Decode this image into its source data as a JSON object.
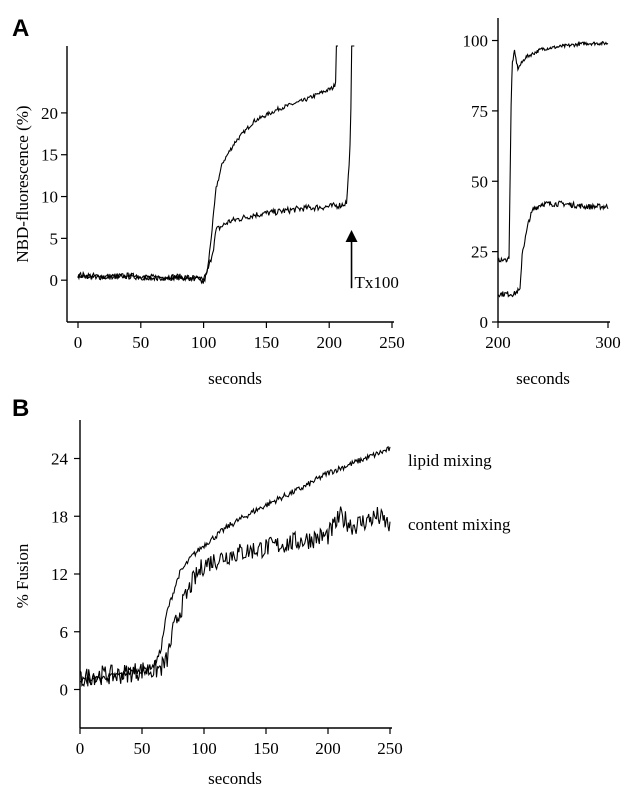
{
  "panels": {
    "a": "A",
    "b": "B"
  },
  "chart_data": [
    {
      "type": "line",
      "id": "A-main",
      "ylabel": "NBD-fluorescence (%)",
      "xlabel": "seconds",
      "xlim": [
        0,
        250
      ],
      "ylim": [
        -5,
        28
      ],
      "xticks": [
        0,
        50,
        100,
        150,
        200,
        250
      ],
      "yticks": [
        0,
        5,
        10,
        15,
        20
      ],
      "annotation": {
        "text": "Tx100",
        "x": 213,
        "y_from": 0,
        "y_to": 6
      },
      "series": [
        {
          "x": [
            0,
            20,
            40,
            60,
            80,
            95,
            100,
            103,
            106,
            110,
            115,
            125,
            140,
            160,
            180,
            195,
            203,
            205,
            206,
            207
          ],
          "y": [
            0.5,
            0.3,
            0.5,
            0.2,
            0.3,
            0.1,
            0.2,
            1,
            5,
            11,
            14,
            16.5,
            19,
            20.5,
            21.5,
            22.5,
            23,
            23.5,
            30,
            30
          ]
        },
        {
          "x": [
            0,
            20,
            40,
            60,
            80,
            95,
            100,
            105,
            108,
            110,
            120,
            140,
            160,
            180,
            200,
            210,
            214,
            217,
            218,
            220
          ],
          "y": [
            0.6,
            0.4,
            0.5,
            0.3,
            0.4,
            0.2,
            -0.3,
            2,
            4,
            6,
            7,
            7.8,
            8.2,
            8.6,
            8.8,
            9,
            9.3,
            17,
            30,
            30
          ]
        }
      ]
    },
    {
      "type": "line",
      "id": "A-inset",
      "xlabel": "seconds",
      "xlim": [
        200,
        300
      ],
      "ylim": [
        0,
        108
      ],
      "xticks": [
        200,
        300
      ],
      "yticks": [
        0,
        25,
        50,
        75,
        100
      ],
      "series": [
        {
          "x": [
            200,
            208,
            210,
            212,
            213,
            215,
            218,
            225,
            240,
            260,
            280,
            300
          ],
          "y": [
            22,
            22,
            23,
            80,
            92,
            96,
            90,
            94,
            97,
            98,
            99,
            99
          ]
        },
        {
          "x": [
            200,
            215,
            218,
            220,
            222,
            224,
            226,
            228,
            232,
            240,
            260,
            280,
            300
          ],
          "y": [
            10,
            10,
            11,
            11,
            25,
            28,
            32,
            36,
            40,
            42,
            42,
            41,
            41
          ]
        }
      ]
    },
    {
      "type": "line",
      "id": "B",
      "ylabel": "% Fusion",
      "xlabel": "seconds",
      "xlim": [
        0,
        250
      ],
      "ylim": [
        -4,
        28
      ],
      "xticks": [
        0,
        50,
        100,
        150,
        200,
        250
      ],
      "yticks": [
        0,
        6,
        12,
        18,
        24
      ],
      "series": [
        {
          "name": "lipid mixing",
          "x": [
            0,
            10,
            30,
            50,
            60,
            65,
            70,
            80,
            90,
            100,
            120,
            140,
            160,
            180,
            200,
            220,
            240,
            250
          ],
          "y": [
            1,
            1,
            1.5,
            2,
            2.5,
            4,
            8,
            12,
            13.8,
            15,
            17,
            18.5,
            19.8,
            21,
            22.5,
            23.5,
            24.5,
            25
          ]
        },
        {
          "name": "content mixing",
          "x": [
            0,
            10,
            30,
            50,
            60,
            65,
            70,
            75,
            80,
            90,
            100,
            120,
            140,
            160,
            180,
            200,
            210,
            220,
            230,
            240,
            250
          ],
          "y": [
            1,
            1.5,
            1.5,
            2,
            2,
            2.2,
            3,
            6,
            8,
            11,
            13,
            14,
            14.5,
            15,
            15.5,
            16,
            18,
            17,
            17.5,
            18,
            17
          ]
        }
      ]
    }
  ]
}
